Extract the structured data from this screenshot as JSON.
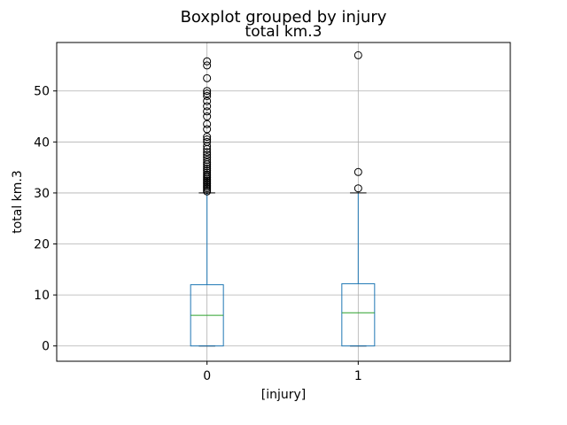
{
  "chart_data": {
    "type": "boxplot",
    "suptitle": "Boxplot grouped by injury",
    "title": "total km.3",
    "xlabel": "[injury]",
    "ylabel": "total km.3",
    "categories": [
      "0",
      "1"
    ],
    "ylim": [
      -3,
      59.5
    ],
    "yticks": [
      0,
      10,
      20,
      30,
      40,
      50
    ],
    "grid": true,
    "colors": {
      "box": "#1f77b4",
      "median": "#2ca02c",
      "grid": "#b0b0b0",
      "outlier": "#000000"
    },
    "boxes": [
      {
        "category": "0",
        "whisker_low": 0,
        "q1": 0,
        "median": 6,
        "q3": 12,
        "whisker_high": 30,
        "outliers": [
          30.3,
          30.6,
          30.9,
          31.2,
          31.5,
          31.8,
          32.1,
          32.4,
          32.7,
          33.0,
          33.3,
          33.6,
          34.0,
          34.4,
          34.8,
          35.2,
          35.6,
          36.0,
          36.5,
          37.0,
          37.5,
          38.0,
          38.6,
          39.2,
          40.0,
          40.5,
          41.0,
          42.5,
          43.5,
          45.0,
          46.0,
          47.0,
          48.0,
          49.0,
          49.5,
          50.0,
          52.5,
          55.0,
          55.8
        ]
      },
      {
        "category": "1",
        "whisker_low": 0,
        "q1": 0,
        "median": 6.5,
        "q3": 12.2,
        "whisker_high": 30,
        "outliers": [
          30.9,
          34.1,
          57.0
        ]
      }
    ]
  }
}
